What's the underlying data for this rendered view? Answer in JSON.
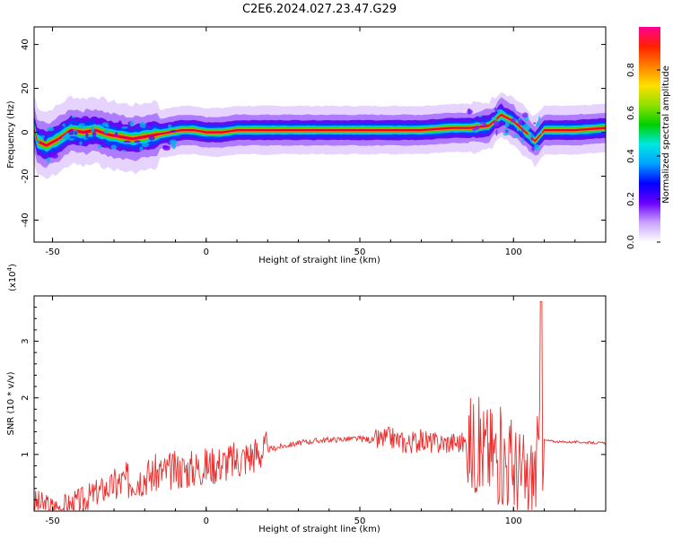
{
  "title": "C2E6.2024.027.23.47.G29",
  "chart_data": [
    {
      "type": "heatmap",
      "xlabel": "Height of straight line (km)",
      "ylabel": "Frequency (Hz)",
      "xlim": [
        -56,
        130
      ],
      "ylim": [
        -50,
        48
      ],
      "xticks": [
        -50,
        0,
        50,
        100
      ],
      "yticks": [
        40,
        20,
        0,
        -20,
        -40
      ],
      "ridge": [
        {
          "x": -55,
          "y": -4
        },
        {
          "x": -52,
          "y": -6
        },
        {
          "x": -48,
          "y": -3
        },
        {
          "x": -44,
          "y": 1
        },
        {
          "x": -40,
          "y": 0
        },
        {
          "x": -36,
          "y": 1
        },
        {
          "x": -32,
          "y": -1
        },
        {
          "x": -28,
          "y": -2
        },
        {
          "x": -24,
          "y": -3
        },
        {
          "x": -20,
          "y": -2
        },
        {
          "x": -16,
          "y": -1
        },
        {
          "x": -12,
          "y": 0
        },
        {
          "x": -8,
          "y": 1
        },
        {
          "x": -4,
          "y": 1
        },
        {
          "x": 0,
          "y": 0
        },
        {
          "x": 5,
          "y": 0
        },
        {
          "x": 10,
          "y": 1
        },
        {
          "x": 20,
          "y": 1
        },
        {
          "x": 30,
          "y": 1
        },
        {
          "x": 40,
          "y": 1
        },
        {
          "x": 50,
          "y": 1
        },
        {
          "x": 60,
          "y": 1
        },
        {
          "x": 70,
          "y": 1
        },
        {
          "x": 80,
          "y": 2
        },
        {
          "x": 86,
          "y": 2
        },
        {
          "x": 92,
          "y": 3
        },
        {
          "x": 96,
          "y": 8
        },
        {
          "x": 100,
          "y": 5
        },
        {
          "x": 104,
          "y": 0
        },
        {
          "x": 107,
          "y": -4
        },
        {
          "x": 110,
          "y": 1
        },
        {
          "x": 120,
          "y": 1
        },
        {
          "x": 130,
          "y": 2
        }
      ]
    },
    {
      "type": "line",
      "xlabel": "Height of straight line (km)",
      "ylabel": "SNR (10 * v/v)",
      "ylabel_multiplier": "(x10",
      "ylabel_multiplier_exp": "4",
      "ylabel_multiplier_close": ")",
      "xlim": [
        -56,
        130
      ],
      "ylim": [
        0,
        3.8
      ],
      "xticks": [
        -50,
        0,
        50,
        100
      ],
      "yticks": [
        1,
        2,
        3
      ],
      "series": [
        {
          "color": "#e8302f",
          "x": [
            -56,
            -50,
            -45,
            -40,
            -35,
            -30,
            -25,
            -20,
            -15,
            -10,
            -5,
            0,
            5,
            10,
            15,
            20,
            25,
            30,
            35,
            40,
            45,
            50,
            55,
            60,
            65,
            70,
            75,
            80,
            85,
            90,
            95,
            100,
            105,
            110,
            115,
            120,
            125,
            130
          ],
          "y": [
            0.15,
            0.05,
            0.08,
            0.2,
            0.35,
            0.45,
            0.55,
            0.62,
            0.68,
            0.72,
            0.75,
            0.8,
            0.85,
            0.9,
            1.0,
            1.08,
            1.15,
            1.2,
            1.24,
            1.26,
            1.27,
            1.28,
            1.25,
            1.3,
            1.2,
            1.25,
            1.2,
            1.22,
            1.2,
            1.1,
            1.0,
            0.8,
            0.4,
            1.25,
            1.22,
            1.22,
            1.21,
            1.2
          ]
        }
      ]
    }
  ],
  "colorbar": {
    "label": "Normalized spectral amplitude",
    "ticks": [
      "0.0",
      "0.2",
      "0.4",
      "0.6",
      "0.8"
    ],
    "stops": [
      "#ffffff",
      "#c9a3ff",
      "#6a00ff",
      "#0000ff",
      "#00a0ff",
      "#00e8e0",
      "#00d000",
      "#90e000",
      "#ffe000",
      "#ff8000",
      "#ff2000",
      "#ff0090"
    ]
  }
}
